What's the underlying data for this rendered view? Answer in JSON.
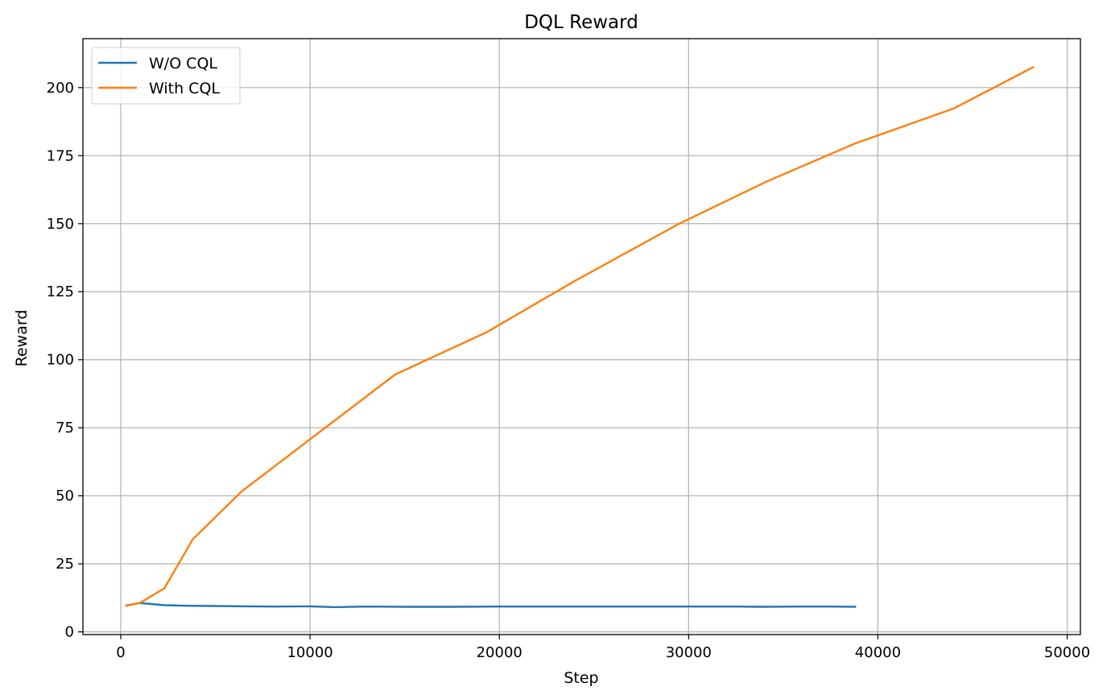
{
  "chart_data": {
    "type": "line",
    "title": "DQL Reward",
    "xlabel": "Step",
    "ylabel": "Reward",
    "xlim": [
      -2000,
      50700
    ],
    "ylim": [
      -1,
      218
    ],
    "xticks": [
      0,
      10000,
      20000,
      30000,
      40000,
      50000
    ],
    "xtick_labels": [
      "0",
      "10000",
      "20000",
      "30000",
      "40000",
      "50000"
    ],
    "yticks": [
      0,
      25,
      50,
      75,
      100,
      125,
      150,
      175,
      200
    ],
    "ytick_labels": [
      "0",
      "25",
      "50",
      "75",
      "100",
      "125",
      "150",
      "175",
      "200"
    ],
    "grid": true,
    "legend": "top-left",
    "series": [
      {
        "name": "W/O CQL",
        "color": "#1f77b4",
        "x": [
          300,
          1000,
          2300,
          3500,
          5000,
          6500,
          8000,
          10000,
          11300,
          13000,
          15000,
          17500,
          20000,
          22500,
          25000,
          27500,
          30000,
          32500,
          33800,
          36000,
          37500,
          38800
        ],
        "y": [
          9.7,
          10.6,
          9.8,
          9.6,
          9.5,
          9.4,
          9.3,
          9.4,
          9.1,
          9.3,
          9.2,
          9.2,
          9.3,
          9.3,
          9.3,
          9.3,
          9.3,
          9.3,
          9.2,
          9.3,
          9.3,
          9.2
        ]
      },
      {
        "name": "With CQL",
        "color": "#ff7f0e",
        "x": [
          300,
          1000,
          2300,
          3800,
          6400,
          14500,
          19300,
          24000,
          29500,
          34100,
          38800,
          44000,
          48200
        ],
        "y": [
          9.6,
          10.6,
          16.0,
          34.0,
          51.7,
          94.6,
          110.0,
          129.0,
          150.0,
          165.4,
          179.5,
          192.3,
          207.5
        ]
      }
    ]
  }
}
